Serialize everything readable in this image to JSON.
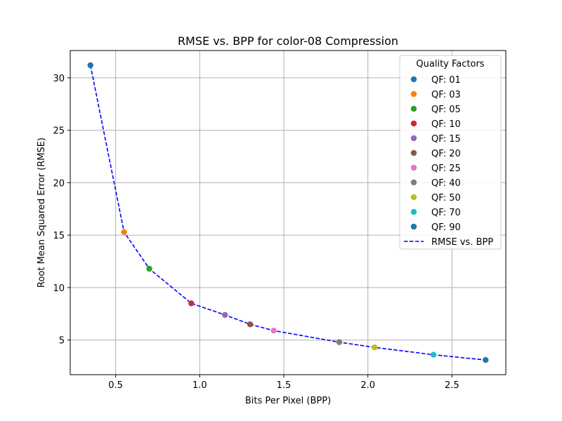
{
  "chart_data": {
    "type": "scatter",
    "title": "RMSE vs. BPP for color-08 Compression",
    "xlabel": "Bits Per Pixel (BPP)",
    "ylabel": "Root Mean Squared Error (RMSE)",
    "xlim": [
      0.23,
      2.82
    ],
    "ylim": [
      1.7,
      32.6
    ],
    "xticks": [
      0.5,
      1.0,
      1.5,
      2.0,
      2.5
    ],
    "xtick_labels": [
      "0.5",
      "1.0",
      "1.5",
      "2.0",
      "2.5"
    ],
    "yticks": [
      5,
      10,
      15,
      20,
      25,
      30
    ],
    "ytick_labels": [
      "5",
      "10",
      "15",
      "20",
      "25",
      "30"
    ],
    "grid": true,
    "legend": {
      "title": "Quality Factors",
      "placement": "top-right",
      "line_label": "RMSE vs. BPP"
    },
    "series": [
      {
        "name": "QF: 01",
        "color": "#1f77b4",
        "x": [
          0.35
        ],
        "y": [
          31.2
        ]
      },
      {
        "name": "QF: 03",
        "color": "#ff7f0e",
        "x": [
          0.55
        ],
        "y": [
          15.3
        ]
      },
      {
        "name": "QF: 05",
        "color": "#2ca02c",
        "x": [
          0.7
        ],
        "y": [
          11.8
        ]
      },
      {
        "name": "QF: 10",
        "color": "#d62728",
        "x": [
          0.95
        ],
        "y": [
          8.5
        ]
      },
      {
        "name": "QF: 15",
        "color": "#9467bd",
        "x": [
          1.15
        ],
        "y": [
          7.4
        ]
      },
      {
        "name": "QF: 20",
        "color": "#8c564b",
        "x": [
          1.3
        ],
        "y": [
          6.5
        ]
      },
      {
        "name": "QF: 25",
        "color": "#e377c2",
        "x": [
          1.44
        ],
        "y": [
          5.9
        ]
      },
      {
        "name": "QF: 40",
        "color": "#7f7f7f",
        "x": [
          1.83
        ],
        "y": [
          4.8
        ]
      },
      {
        "name": "QF: 50",
        "color": "#bcbd22",
        "x": [
          2.04
        ],
        "y": [
          4.3
        ]
      },
      {
        "name": "QF: 70",
        "color": "#17becf",
        "x": [
          2.39
        ],
        "y": [
          3.6
        ]
      },
      {
        "name": "QF: 90",
        "color": "#1f77b4",
        "x": [
          2.7
        ],
        "y": [
          3.1
        ]
      }
    ],
    "line": {
      "name": "RMSE vs. BPP",
      "color": "#0000ff",
      "style": "dashed",
      "x": [
        0.35,
        0.55,
        0.7,
        0.95,
        1.15,
        1.3,
        1.44,
        1.83,
        2.04,
        2.39,
        2.7
      ],
      "y": [
        31.2,
        15.3,
        11.8,
        8.5,
        7.4,
        6.5,
        5.9,
        4.8,
        4.3,
        3.6,
        3.1
      ]
    }
  }
}
